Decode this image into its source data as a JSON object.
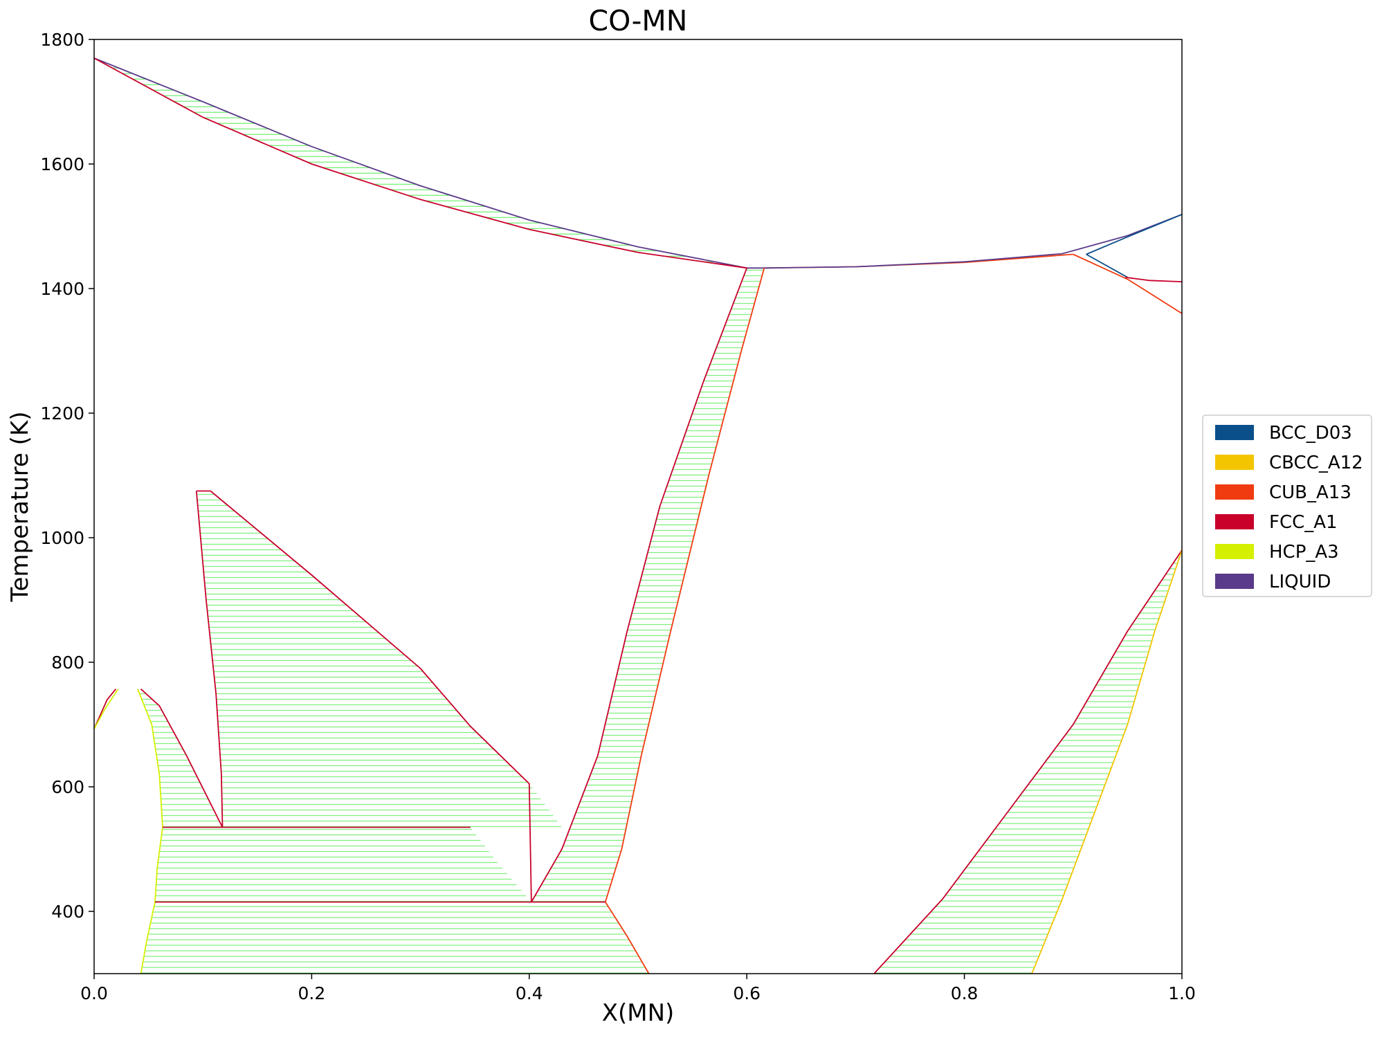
{
  "chart_data": {
    "type": "line",
    "title": "CO-MN",
    "xlabel": "X(MN)",
    "ylabel": "Temperature (K)",
    "xlim": [
      0.0,
      1.0
    ],
    "ylim": [
      300,
      1800
    ],
    "xticks": [
      "0.0",
      "0.2",
      "0.4",
      "0.6",
      "0.8",
      "1.0"
    ],
    "xtick_values": [
      0.0,
      0.2,
      0.4,
      0.6,
      0.8,
      1.0
    ],
    "yticks": [
      "400",
      "600",
      "800",
      "1000",
      "1200",
      "1400",
      "1600",
      "1800"
    ],
    "ytick_values": [
      400,
      600,
      800,
      1000,
      1200,
      1400,
      1600,
      1800
    ],
    "grid": false,
    "legend_position": "right, outside plot",
    "legend": [
      {
        "name": "BCC_D03",
        "color": "#0b4f8a"
      },
      {
        "name": "CBCC_A12",
        "color": "#f2c500"
      },
      {
        "name": "CUB_A13",
        "color": "#f03b10"
      },
      {
        "name": "FCC_A1",
        "color": "#c8002a"
      },
      {
        "name": "HCP_A3",
        "color": "#d4f000"
      },
      {
        "name": "LIQUID",
        "color": "#5a3a8a"
      }
    ],
    "tie_line_color": "#7fef7f",
    "regions": [
      {
        "name": "liquid-fcc",
        "left": [
          [
            0.0,
            1770
          ],
          [
            0.1,
            1700
          ],
          [
            0.2,
            1628
          ],
          [
            0.3,
            1565
          ],
          [
            0.4,
            1510
          ],
          [
            0.5,
            1467
          ],
          [
            0.6,
            1433
          ]
        ],
        "right": [
          [
            0.0,
            1770
          ],
          [
            0.1,
            1675
          ],
          [
            0.2,
            1600
          ],
          [
            0.3,
            1543
          ],
          [
            0.4,
            1495
          ],
          [
            0.5,
            1458
          ],
          [
            0.6,
            1433
          ]
        ],
        "tie_every": 8
      },
      {
        "name": "fcc-cub",
        "left": [
          [
            0.6,
            1433
          ],
          [
            0.56,
            1250
          ],
          [
            0.52,
            1050
          ],
          [
            0.49,
            850
          ],
          [
            0.463,
            650
          ],
          [
            0.43,
            500
          ],
          [
            0.402,
            415
          ]
        ],
        "right": [
          [
            0.616,
            1433
          ],
          [
            0.595,
            1300
          ],
          [
            0.565,
            1100
          ],
          [
            0.53,
            850
          ],
          [
            0.503,
            650
          ],
          [
            0.485,
            500
          ],
          [
            0.47,
            415
          ]
        ],
        "tie_every": 8
      },
      {
        "name": "fcc-hcp-mid",
        "left": [
          [
            0.094,
            1075
          ],
          [
            0.103,
            900
          ],
          [
            0.112,
            750
          ],
          [
            0.117,
            620
          ],
          [
            0.118,
            535
          ]
        ],
        "right": [
          [
            0.107,
            1075
          ],
          [
            0.2,
            940
          ],
          [
            0.3,
            790
          ],
          [
            0.346,
            697
          ],
          [
            0.4,
            605
          ],
          [
            0.43,
            535
          ]
        ],
        "tie_every": 8,
        "top": 1075,
        "bottom": 535
      },
      {
        "name": "hcp-fcc-low",
        "left": [
          [
            0.04,
            757
          ],
          [
            0.053,
            700
          ],
          [
            0.06,
            620
          ],
          [
            0.063,
            535
          ]
        ],
        "right": [
          [
            0.043,
            757
          ],
          [
            0.06,
            730
          ],
          [
            0.085,
            650
          ],
          [
            0.118,
            535
          ]
        ],
        "tie_every": 8
      },
      {
        "name": "hcp-fcc-535-415",
        "left": [
          [
            0.063,
            535
          ],
          [
            0.058,
            470
          ],
          [
            0.056,
            415
          ]
        ],
        "right": [
          [
            0.346,
            535
          ],
          [
            0.37,
            480
          ],
          [
            0.402,
            415
          ]
        ],
        "tie_every": 8
      },
      {
        "name": "hcp-cub-low",
        "left": [
          [
            0.056,
            415
          ],
          [
            0.048,
            350
          ],
          [
            0.043,
            300
          ]
        ],
        "right": [
          [
            0.47,
            415
          ],
          [
            0.49,
            360
          ],
          [
            0.51,
            300
          ]
        ],
        "tie_every": 8
      },
      {
        "name": "cub-cbcc",
        "left": [
          [
            0.717,
            300
          ],
          [
            0.78,
            420
          ],
          [
            0.84,
            560
          ],
          [
            0.9,
            700
          ],
          [
            0.95,
            850
          ],
          [
            1.0,
            980
          ]
        ],
        "right": [
          [
            0.862,
            300
          ],
          [
            0.89,
            420
          ],
          [
            0.92,
            560
          ],
          [
            0.95,
            700
          ],
          [
            0.975,
            850
          ],
          [
            1.0,
            980
          ]
        ],
        "tie_every": 8
      }
    ],
    "boundaries": [
      {
        "color": "#5a3a8a",
        "points": [
          [
            0.0,
            1770
          ],
          [
            0.1,
            1700
          ],
          [
            0.2,
            1628
          ],
          [
            0.3,
            1565
          ],
          [
            0.4,
            1510
          ],
          [
            0.5,
            1467
          ],
          [
            0.6,
            1433
          ],
          [
            0.616,
            1433
          ]
        ]
      },
      {
        "color": "#c8002a",
        "points": [
          [
            0.0,
            1770
          ],
          [
            0.1,
            1675
          ],
          [
            0.2,
            1600
          ],
          [
            0.3,
            1543
          ],
          [
            0.4,
            1495
          ],
          [
            0.5,
            1458
          ],
          [
            0.6,
            1433
          ]
        ]
      },
      {
        "color": "#f03b10",
        "points": [
          [
            0.616,
            1433
          ],
          [
            0.7,
            1435
          ],
          [
            0.8,
            1442
          ],
          [
            0.9,
            1455
          ]
        ]
      },
      {
        "color": "#5a3a8a",
        "points": [
          [
            0.616,
            1433
          ],
          [
            0.7,
            1435
          ],
          [
            0.8,
            1443
          ],
          [
            0.89,
            1456
          ],
          [
            0.95,
            1485
          ],
          [
            1.0,
            1519
          ]
        ]
      },
      {
        "color": "#0b4f8a",
        "points": [
          [
            0.912,
            1455
          ],
          [
            0.95,
            1483
          ],
          [
            1.0,
            1519
          ]
        ]
      },
      {
        "color": "#0b4f8a",
        "points": [
          [
            0.912,
            1455
          ],
          [
            0.95,
            1418
          ]
        ]
      },
      {
        "color": "#f03b10",
        "points": [
          [
            0.9,
            1455
          ],
          [
            0.95,
            1415
          ],
          [
            1.0,
            1360
          ]
        ]
      },
      {
        "color": "#c8002a",
        "points": [
          [
            0.948,
            1418
          ],
          [
            0.97,
            1413
          ],
          [
            1.0,
            1411
          ]
        ]
      },
      {
        "color": "#c8002a",
        "points": [
          [
            0.6,
            1433
          ],
          [
            0.56,
            1250
          ],
          [
            0.52,
            1050
          ],
          [
            0.49,
            850
          ],
          [
            0.463,
            650
          ],
          [
            0.43,
            500
          ],
          [
            0.402,
            415
          ]
        ]
      },
      {
        "color": "#f03b10",
        "points": [
          [
            0.616,
            1433
          ],
          [
            0.595,
            1300
          ],
          [
            0.565,
            1100
          ],
          [
            0.53,
            850
          ],
          [
            0.503,
            650
          ],
          [
            0.485,
            500
          ],
          [
            0.47,
            415
          ]
        ]
      },
      {
        "color": "#c8002a",
        "points": [
          [
            0.094,
            1075
          ],
          [
            0.103,
            900
          ],
          [
            0.112,
            750
          ],
          [
            0.117,
            620
          ],
          [
            0.118,
            535
          ]
        ]
      },
      {
        "color": "#c8002a",
        "points": [
          [
            0.107,
            1075
          ],
          [
            0.2,
            940
          ],
          [
            0.3,
            790
          ],
          [
            0.346,
            697
          ],
          [
            0.4,
            605
          ],
          [
            0.402,
            415
          ]
        ]
      },
      {
        "color": "#c8002a",
        "points": [
          [
            0.094,
            1075
          ],
          [
            0.107,
            1075
          ]
        ]
      },
      {
        "color": "#c8002a",
        "points": [
          [
            0.043,
            757
          ],
          [
            0.06,
            730
          ],
          [
            0.085,
            650
          ],
          [
            0.118,
            535
          ]
        ]
      },
      {
        "color": "#d4f000",
        "points": [
          [
            0.04,
            757
          ],
          [
            0.053,
            700
          ],
          [
            0.06,
            620
          ],
          [
            0.063,
            535
          ],
          [
            0.058,
            470
          ],
          [
            0.056,
            415
          ],
          [
            0.048,
            350
          ],
          [
            0.043,
            300
          ]
        ]
      },
      {
        "color": "#c8002a",
        "points": [
          [
            0.063,
            535
          ],
          [
            0.346,
            535
          ]
        ]
      },
      {
        "color": "#c8002a",
        "points": [
          [
            0.056,
            415
          ],
          [
            0.47,
            415
          ]
        ]
      },
      {
        "color": "#f03b10",
        "points": [
          [
            0.47,
            415
          ],
          [
            0.49,
            360
          ],
          [
            0.51,
            300
          ]
        ]
      },
      {
        "color": "#c8002a",
        "points": [
          [
            0.0,
            693
          ],
          [
            0.012,
            740
          ],
          [
            0.02,
            757
          ]
        ]
      },
      {
        "color": "#d4f000",
        "points": [
          [
            0.0,
            693
          ],
          [
            0.01,
            725
          ],
          [
            0.022,
            757
          ]
        ]
      },
      {
        "color": "#c8002a",
        "points": [
          [
            0.717,
            300
          ],
          [
            0.78,
            420
          ],
          [
            0.84,
            560
          ],
          [
            0.9,
            700
          ],
          [
            0.95,
            850
          ],
          [
            1.0,
            980
          ]
        ]
      },
      {
        "color": "#f2c500",
        "points": [
          [
            0.862,
            300
          ],
          [
            0.89,
            420
          ],
          [
            0.92,
            560
          ],
          [
            0.95,
            700
          ],
          [
            0.975,
            850
          ],
          [
            1.0,
            980
          ]
        ]
      }
    ]
  }
}
